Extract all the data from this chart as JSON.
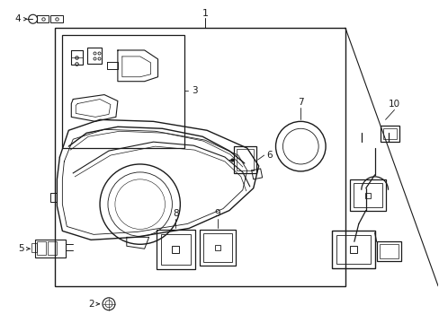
{
  "bg_color": "#ffffff",
  "lc": "#1a1a1a",
  "lw": 0.9,
  "fig_w": 4.89,
  "fig_h": 3.6,
  "dpi": 100
}
